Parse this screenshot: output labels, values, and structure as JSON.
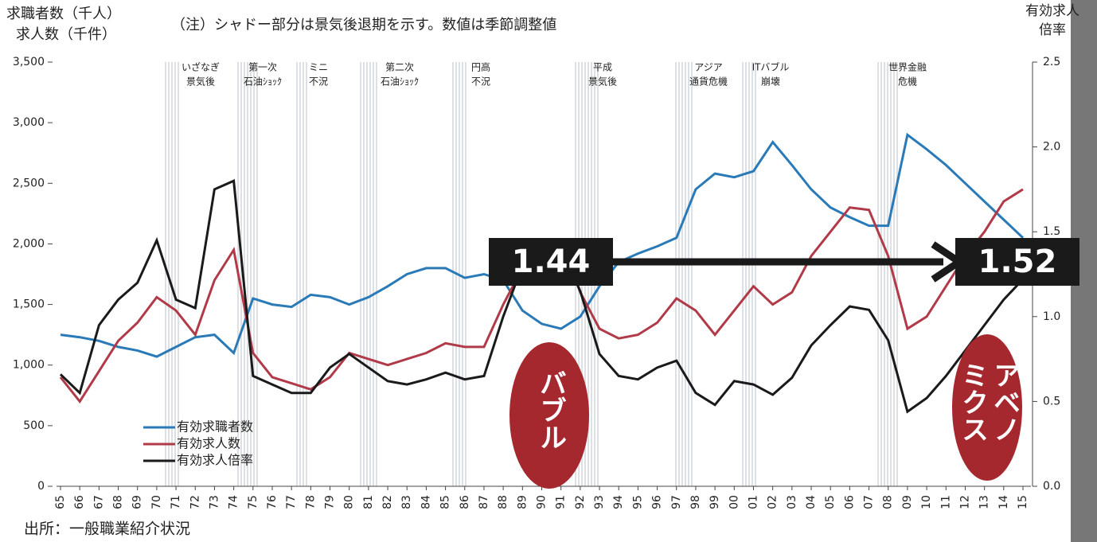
{
  "chart_data": {
    "type": "line",
    "title": "（注）シャドー部分は景気後退期を示す。数値は季節調整値",
    "y_label": [
      "求職者数（千人）",
      "求人数（千件）"
    ],
    "y2_label": [
      "有効求人",
      "倍率"
    ],
    "source": "出所：一般職業紹介状況",
    "categories": [
      "65",
      "66",
      "67",
      "68",
      "69",
      "70",
      "71",
      "72",
      "73",
      "74",
      "75",
      "76",
      "77",
      "78",
      "79",
      "80",
      "81",
      "82",
      "83",
      "84",
      "85",
      "86",
      "87",
      "88",
      "89",
      "90",
      "91",
      "92",
      "93",
      "94",
      "95",
      "96",
      "97",
      "98",
      "99",
      "00",
      "01",
      "02",
      "03",
      "04",
      "05",
      "06",
      "07",
      "08",
      "09",
      "10",
      "11",
      "12",
      "13",
      "14",
      "15"
    ],
    "series": [
      {
        "name": "有効求職者数",
        "color": "#2a7ab8",
        "values": [
          1250,
          1230,
          1200,
          1150,
          1120,
          1070,
          1150,
          1230,
          1250,
          1100,
          1550,
          1500,
          1480,
          1580,
          1560,
          1500,
          1560,
          1650,
          1750,
          1800,
          1800,
          1720,
          1750,
          1700,
          1450,
          1340,
          1300,
          1400,
          1650,
          1850,
          1920,
          1980,
          2050,
          2450,
          2580,
          2550,
          2600,
          2840,
          2650,
          2450,
          2300,
          2220,
          2150,
          2150,
          2900,
          2780,
          2650,
          2500,
          2350,
          2200,
          2050
        ]
      },
      {
        "name": "有効求人数",
        "color": "#b03a48",
        "values": [
          900,
          700,
          950,
          1200,
          1350,
          1560,
          1450,
          1250,
          1700,
          1950,
          1100,
          900,
          850,
          800,
          900,
          1100,
          1050,
          1000,
          1050,
          1100,
          1180,
          1150,
          1150,
          1500,
          1800,
          2000,
          2020,
          1600,
          1300,
          1220,
          1250,
          1350,
          1550,
          1450,
          1250,
          1450,
          1650,
          1500,
          1600,
          1900,
          2100,
          2300,
          2280,
          1900,
          1300,
          1400,
          1650,
          1900,
          2100,
          2350,
          2450
        ]
      },
      {
        "name": "有効求人倍率",
        "color": "#1a1a1a",
        "axis": "y2",
        "values": [
          0.66,
          0.55,
          0.95,
          1.1,
          1.2,
          1.45,
          1.1,
          1.05,
          1.75,
          1.8,
          0.65,
          0.6,
          0.55,
          0.55,
          0.7,
          0.78,
          0.7,
          0.62,
          0.6,
          0.63,
          0.67,
          0.63,
          0.65,
          1.0,
          1.3,
          1.42,
          1.4,
          1.15,
          0.78,
          0.65,
          0.63,
          0.7,
          0.74,
          0.55,
          0.48,
          0.62,
          0.6,
          0.54,
          0.64,
          0.83,
          0.95,
          1.06,
          1.04,
          0.86,
          0.44,
          0.52,
          0.65,
          0.8,
          0.95,
          1.1,
          1.22
        ]
      }
    ],
    "ylim": [
      0,
      3500
    ],
    "yticks": [
      0,
      500,
      {
        "value": 1000,
        "label": "1,000"
      },
      {
        "value": 1500,
        "label": "1,500"
      },
      {
        "value": 2000,
        "label": "2,000"
      },
      {
        "value": 2500,
        "label": "2,500"
      },
      {
        "value": 3000,
        "label": "3,000"
      },
      {
        "value": 3500,
        "label": "3,500"
      }
    ],
    "y2lim": [
      0,
      2.5
    ],
    "y2ticks": [
      {
        "value": 0,
        "label": "0.0"
      },
      0.5,
      {
        "value": 1,
        "label": "1.0"
      },
      1.5,
      {
        "value": 2,
        "label": "2.0"
      },
      2.5
    ],
    "recessions": [
      [
        "いざなぎ",
        "景気後"
      ],
      [
        "第一次",
        "石油ｼｮｯｸ"
      ],
      [
        "ミニ",
        "不況"
      ],
      [
        "第二次",
        "石油ｼｮｯｸ"
      ],
      [
        "円高",
        "不況"
      ],
      [
        "平成",
        "景気後"
      ],
      [
        "アジア",
        "通貨危機"
      ],
      [
        "ITバブル",
        "崩壊"
      ],
      [
        "世界金融",
        "危機"
      ]
    ],
    "callouts": [
      1.44,
      1.52
    ],
    "bubbles": [
      [
        "バブル"
      ],
      [
        "アベノ",
        "ミクス"
      ]
    ]
  }
}
